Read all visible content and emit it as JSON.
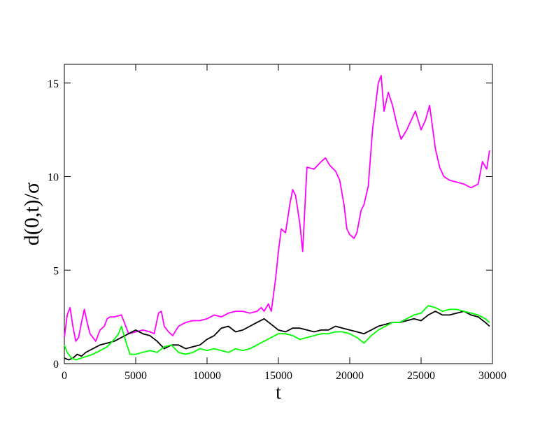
{
  "chart_data": {
    "type": "line",
    "title": "",
    "xlabel": "t",
    "ylabel": "d(0,t)/σ",
    "xlim": [
      0,
      30000
    ],
    "ylim": [
      0,
      16
    ],
    "xticks": [
      0,
      5000,
      10000,
      15000,
      20000,
      25000,
      30000
    ],
    "yticks": [
      0,
      5,
      10,
      15
    ],
    "grid": false,
    "legend": "none",
    "series": [
      {
        "color": "#ff00ff",
        "x": [
          0,
          200,
          400,
          600,
          800,
          1000,
          1200,
          1400,
          1600,
          1800,
          2000,
          2200,
          2500,
          2800,
          3000,
          3200,
          3500,
          4000,
          4200,
          4500,
          5000,
          5500,
          6000,
          6300,
          6600,
          6800,
          7000,
          7300,
          7600,
          8000,
          8500,
          9000,
          9500,
          10000,
          10500,
          11000,
          11500,
          12000,
          12500,
          13000,
          13500,
          13800,
          14000,
          14300,
          14500,
          14800,
          15000,
          15200,
          15500,
          15800,
          16000,
          16200,
          16500,
          16700,
          17000,
          17500,
          18000,
          18300,
          18600,
          19000,
          19300,
          19600,
          19800,
          20000,
          20300,
          20500,
          20800,
          21000,
          21300,
          21600,
          22000,
          22200,
          22400,
          22700,
          23000,
          23300,
          23600,
          24000,
          24300,
          24600,
          25000,
          25300,
          25600,
          26000,
          26300,
          26600,
          27000,
          27500,
          28000,
          28500,
          29000,
          29300,
          29600,
          29800
        ],
        "y": [
          1.4,
          2.6,
          3.0,
          2.0,
          1.2,
          1.4,
          2.2,
          2.9,
          2.2,
          1.6,
          1.4,
          1.2,
          1.8,
          2.0,
          2.4,
          2.5,
          2.5,
          2.6,
          2.2,
          1.6,
          1.7,
          1.8,
          1.7,
          1.6,
          2.7,
          2.8,
          2.0,
          1.7,
          1.5,
          2.0,
          2.2,
          2.3,
          2.3,
          2.4,
          2.6,
          2.5,
          2.7,
          2.8,
          2.8,
          2.7,
          2.8,
          3.0,
          2.8,
          3.2,
          2.8,
          4.5,
          6.0,
          7.2,
          7.0,
          8.5,
          9.3,
          9.0,
          7.5,
          6.0,
          10.5,
          10.4,
          10.8,
          11.0,
          10.6,
          10.3,
          9.8,
          8.5,
          7.2,
          6.9,
          6.7,
          7.0,
          8.2,
          8.5,
          9.5,
          12.5,
          15.0,
          15.4,
          13.5,
          14.5,
          13.8,
          12.8,
          12.0,
          12.5,
          13.0,
          13.5,
          12.5,
          13.0,
          13.8,
          11.5,
          10.5,
          10.0,
          9.8,
          9.7,
          9.6,
          9.4,
          9.6,
          10.8,
          10.4,
          11.4
        ]
      },
      {
        "color": "#000000",
        "x": [
          0,
          300,
          600,
          900,
          1200,
          1500,
          2000,
          2500,
          3000,
          3500,
          4000,
          4500,
          5000,
          5500,
          6000,
          6500,
          7000,
          7500,
          8000,
          8500,
          9000,
          9500,
          10000,
          10500,
          11000,
          11500,
          12000,
          12500,
          13000,
          13500,
          14000,
          14500,
          15000,
          15500,
          16000,
          16500,
          17000,
          17500,
          18000,
          18500,
          19000,
          19500,
          20000,
          20500,
          21000,
          21500,
          22000,
          22500,
          23000,
          23500,
          24000,
          24500,
          25000,
          25500,
          26000,
          26500,
          27000,
          27500,
          28000,
          28500,
          29000,
          29500,
          29800
        ],
        "y": [
          0.3,
          0.2,
          0.3,
          0.5,
          0.4,
          0.6,
          0.8,
          1.0,
          1.1,
          1.2,
          1.4,
          1.6,
          1.8,
          1.6,
          1.5,
          1.2,
          0.8,
          1.0,
          1.0,
          0.8,
          0.9,
          1.0,
          1.3,
          1.5,
          1.9,
          2.0,
          1.7,
          1.8,
          2.0,
          2.2,
          2.4,
          2.1,
          1.8,
          1.7,
          1.9,
          1.9,
          1.8,
          1.7,
          1.8,
          1.8,
          2.0,
          1.9,
          1.8,
          1.7,
          1.6,
          1.8,
          2.0,
          2.1,
          2.2,
          2.2,
          2.3,
          2.4,
          2.3,
          2.6,
          2.8,
          2.6,
          2.6,
          2.7,
          2.8,
          2.6,
          2.5,
          2.2,
          2.0
        ]
      },
      {
        "color": "#00ff00",
        "x": [
          0,
          200,
          500,
          800,
          1200,
          1600,
          2000,
          2500,
          3000,
          3500,
          3800,
          4000,
          4300,
          4600,
          5000,
          5500,
          6000,
          6500,
          7000,
          7500,
          8000,
          8500,
          9000,
          9500,
          10000,
          10500,
          11000,
          11500,
          12000,
          12500,
          13000,
          13500,
          14000,
          14500,
          15000,
          15500,
          16000,
          16500,
          17000,
          17500,
          18000,
          18500,
          19000,
          19500,
          20000,
          20500,
          21000,
          21500,
          22000,
          22500,
          23000,
          23500,
          24000,
          24500,
          25000,
          25500,
          26000,
          26500,
          27000,
          27500,
          28000,
          28500,
          29000,
          29500,
          29800
        ],
        "y": [
          1.0,
          0.6,
          0.3,
          0.2,
          0.3,
          0.4,
          0.5,
          0.7,
          0.9,
          1.3,
          1.6,
          2.0,
          1.2,
          0.5,
          0.5,
          0.6,
          0.7,
          0.6,
          0.9,
          1.0,
          0.6,
          0.5,
          0.6,
          0.8,
          0.7,
          0.8,
          0.7,
          0.6,
          0.8,
          0.7,
          0.8,
          1.0,
          1.2,
          1.4,
          1.6,
          1.6,
          1.5,
          1.3,
          1.4,
          1.5,
          1.6,
          1.6,
          1.7,
          1.7,
          1.6,
          1.4,
          1.1,
          1.5,
          1.8,
          2.0,
          2.2,
          2.2,
          2.4,
          2.6,
          2.7,
          3.1,
          3.0,
          2.8,
          2.9,
          2.9,
          2.8,
          2.7,
          2.6,
          2.4,
          2.2
        ]
      }
    ]
  }
}
